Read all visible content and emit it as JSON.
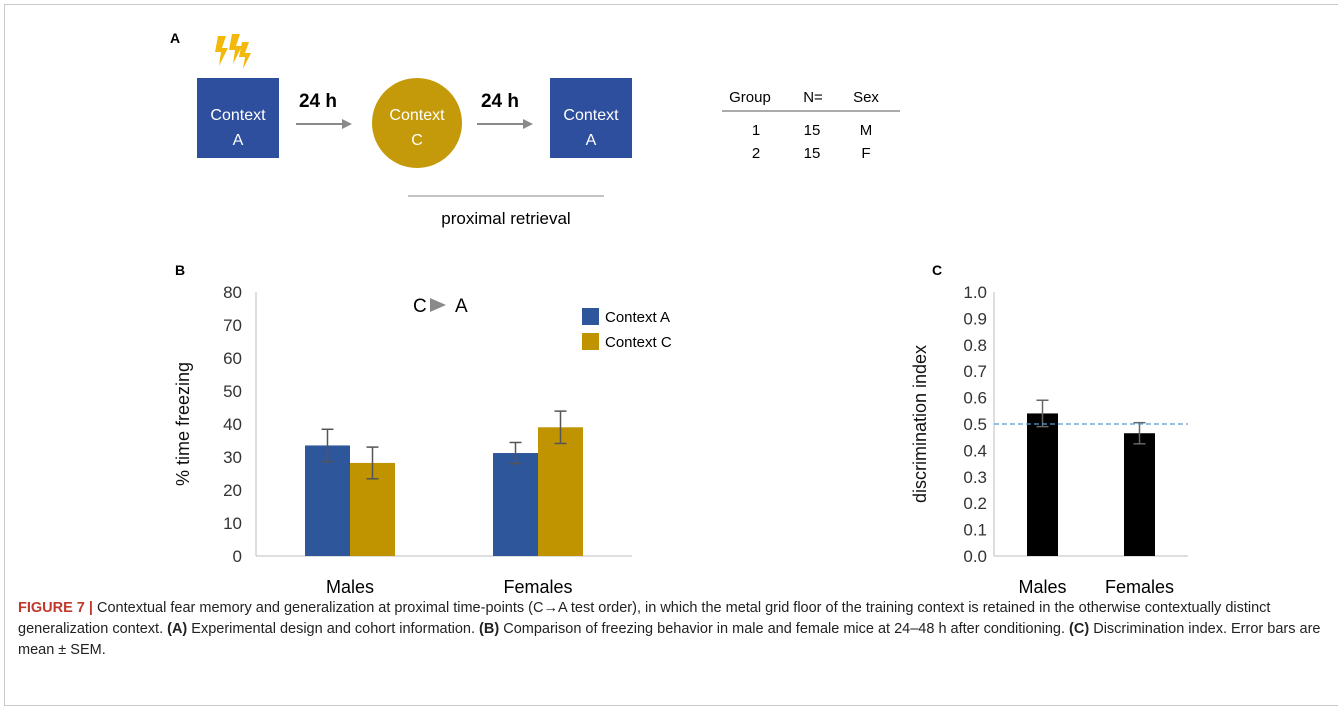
{
  "panel_a": {
    "letter": "A",
    "box1": {
      "line1": "Context",
      "line2": "A"
    },
    "arrow1": "24 h",
    "circle": {
      "line1": "Context",
      "line2": "C"
    },
    "arrow2": "24 h",
    "box2": {
      "line1": "Context",
      "line2": "A"
    },
    "retrieval_label": "proximal retrieval",
    "table": {
      "headers": [
        "Group",
        "N=",
        "Sex"
      ],
      "rows": [
        [
          "1",
          "15",
          "M"
        ],
        [
          "2",
          "15",
          "F"
        ]
      ]
    },
    "colors": {
      "box": "#2e4f9e",
      "circle": "#c59a0a",
      "shock": "#f2b90c"
    }
  },
  "panel_b_letter": "B",
  "panel_c_letter": "C",
  "chart_data": [
    {
      "type": "bar",
      "categories": [
        "Males",
        "Females"
      ],
      "series": [
        {
          "name": "Context A",
          "values": [
            33.5,
            31.2
          ],
          "errors": [
            4.9,
            3.2
          ],
          "color": "#2e569b"
        },
        {
          "name": "Context C",
          "values": [
            28.2,
            39.0
          ],
          "errors": [
            4.8,
            4.9
          ],
          "color": "#c09300"
        }
      ],
      "annotation": "C ▶ A",
      "ylabel": "% time freezing",
      "ylim": [
        0,
        80
      ],
      "yticks": [
        "0",
        "10",
        "20",
        "30",
        "40",
        "50",
        "60",
        "70",
        "80"
      ],
      "legend": "top-right",
      "grid": false
    },
    {
      "type": "bar",
      "categories": [
        "Males",
        "Females"
      ],
      "values": [
        0.54,
        0.465
      ],
      "errors": [
        0.05,
        0.04
      ],
      "color": "#000000",
      "reference_line": 0.5,
      "ylabel": "discrimination index",
      "ylim": [
        0,
        1
      ],
      "yticks": [
        "0.0",
        "0.1",
        "0.2",
        "0.3",
        "0.4",
        "0.5",
        "0.6",
        "0.7",
        "0.8",
        "0.9",
        "1.0"
      ],
      "grid": false
    }
  ],
  "caption": {
    "label": "FIGURE 7 |",
    "text1": " Contextual fear memory and generalization at proximal time-points (C→A test order), in which the metal grid floor of the training context is retained in the otherwise contextually distinct generalization context. ",
    "bold_a": "(A)",
    "text2": " Experimental design and cohort information. ",
    "bold_b": "(B)",
    "text3": " Comparison of freezing behavior in male and female mice at 24–48 h after conditioning. ",
    "bold_c": "(C)",
    "text4": " Discrimination index. Error bars are mean ± SEM."
  }
}
